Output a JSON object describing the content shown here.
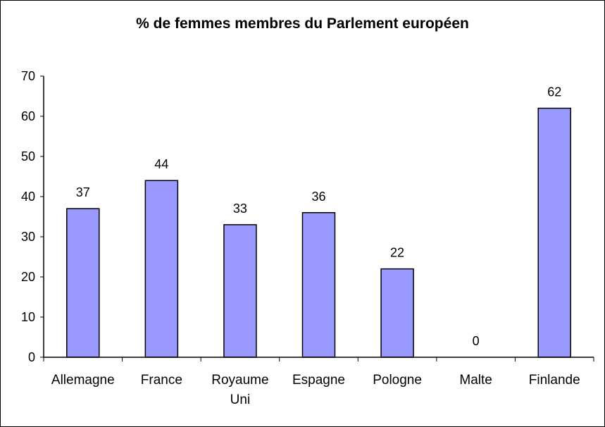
{
  "chart_data": {
    "type": "bar",
    "title": "% de femmes membres du Parlement européen",
    "categories": [
      [
        "Allemagne"
      ],
      [
        "France"
      ],
      [
        "Royaume",
        "Uni"
      ],
      [
        "Espagne"
      ],
      [
        "Pologne"
      ],
      [
        "Malte"
      ],
      [
        "Finlande"
      ]
    ],
    "values": [
      37,
      44,
      33,
      36,
      22,
      0,
      62
    ],
    "data_labels": [
      "37",
      "44",
      "33",
      "36",
      "22",
      "0",
      "62"
    ],
    "ylim": [
      0,
      70
    ],
    "yticks": [
      "0",
      "10",
      "20",
      "30",
      "40",
      "50",
      "60",
      "70"
    ],
    "xlabel": "",
    "ylabel": "",
    "grid": false,
    "legend": "none",
    "bar_color": "#9999ff"
  }
}
